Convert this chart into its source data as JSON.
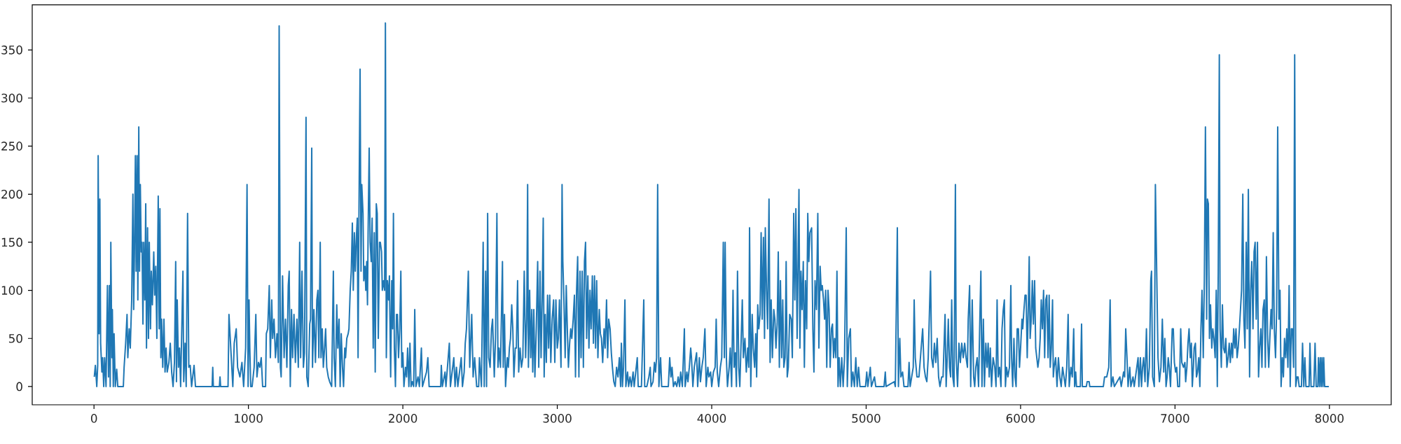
{
  "chart_data": {
    "type": "line",
    "color": "#1f77b4",
    "xlim": [
      -400,
      8400
    ],
    "ylim": [
      -19,
      397
    ],
    "xticks": [
      0,
      1000,
      2000,
      3000,
      4000,
      5000,
      6000,
      7000,
      8000
    ],
    "yticks": [
      0,
      50,
      100,
      150,
      200,
      250,
      300,
      350
    ],
    "x": [
      2,
      9,
      18,
      24,
      27,
      33,
      38,
      43,
      51,
      56,
      63,
      69,
      78,
      87,
      94,
      100,
      105,
      109,
      116,
      119,
      125,
      130,
      138,
      147,
      154,
      190,
      195,
      205,
      214,
      219,
      228,
      235,
      244,
      252,
      257,
      262,
      268,
      273,
      279,
      284,
      290,
      295,
      300,
      306,
      311,
      317,
      322,
      329,
      335,
      340,
      347,
      353,
      358,
      366,
      371,
      378,
      387,
      393,
      400,
      407,
      416,
      422,
      427,
      433,
      438,
      445,
      453,
      460,
      467,
      474,
      485,
      494,
      503,
      512,
      521,
      529,
      534,
      539,
      547,
      554,
      561,
      576,
      581,
      590,
      597,
      606,
      614,
      623,
      632,
      648,
      657,
      765,
      769,
      773,
      812,
      816,
      820,
      868,
      874,
      899,
      908,
      921,
      930,
      945,
      958,
      969,
      982,
      991,
      998,
      1004,
      1009,
      1015,
      1024,
      1037,
      1048,
      1055,
      1065,
      1074,
      1083,
      1092,
      1111,
      1116,
      1125,
      1135,
      1142,
      1151,
      1157,
      1166,
      1175,
      1185,
      1194,
      1199,
      1207,
      1212,
      1221,
      1231,
      1240,
      1249,
      1258,
      1264,
      1271,
      1279,
      1286,
      1295,
      1304,
      1314,
      1323,
      1332,
      1338,
      1347,
      1356,
      1363,
      1373,
      1378,
      1387,
      1397,
      1402,
      1410,
      1415,
      1424,
      1434,
      1443,
      1450,
      1456,
      1465,
      1470,
      1478,
      1485,
      1493,
      1500,
      1507,
      1517,
      1526,
      1539,
      1550,
      1555,
      1563,
      1572,
      1579,
      1587,
      1594,
      1601,
      1609,
      1616,
      1624,
      1629,
      1637,
      1646,
      1651,
      1659,
      1666,
      1673,
      1679,
      1686,
      1692,
      1699,
      1705,
      1710,
      1716,
      1723,
      1729,
      1734,
      1742,
      1747,
      1755,
      1760,
      1766,
      1771,
      1775,
      1782,
      1788,
      1795,
      1801,
      1808,
      1815,
      1821,
      1828,
      1834,
      1841,
      1849,
      1854,
      1862,
      1867,
      1875,
      1882,
      1887,
      1893,
      1900,
      1908,
      1913,
      1921,
      1928,
      1934,
      1939,
      1945,
      1952,
      1959,
      1965,
      1972,
      1980,
      1987,
      1993,
      2000,
      2007,
      2017,
      2024,
      2031,
      2039,
      2046,
      2053,
      2061,
      2070,
      2077,
      2085,
      2098,
      2107,
      2120,
      2127,
      2153,
      2162,
      2170,
      2245,
      2249,
      2256,
      2273,
      2279,
      2301,
      2308,
      2330,
      2338,
      2347,
      2356,
      2378,
      2386,
      2397,
      2404,
      2412,
      2424,
      2433,
      2446,
      2455,
      2465,
      2478,
      2491,
      2496,
      2509,
      2520,
      2527,
      2536,
      2542,
      2549,
      2556,
      2565,
      2574,
      2581,
      2592,
      2600,
      2609,
      2616,
      2623,
      2632,
      2645,
      2650,
      2658,
      2665,
      2676,
      2683,
      2690,
      2697,
      2705,
      2712,
      2719,
      2728,
      2735,
      2743,
      2750,
      2759,
      2768,
      2777,
      2786,
      2795,
      2802,
      2808,
      2813,
      2821,
      2828,
      2835,
      2841,
      2848,
      2855,
      2864,
      2873,
      2880,
      2888,
      2895,
      2902,
      2909,
      2915,
      2922,
      2929,
      2937,
      2944,
      2951,
      2958,
      2967,
      2976,
      2984,
      2991,
      3000,
      3007,
      3014,
      3024,
      3031,
      3036,
      3043,
      3051,
      3058,
      3065,
      3072,
      3080,
      3087,
      3094,
      3103,
      3111,
      3118,
      3125,
      3132,
      3140,
      3147,
      3154,
      3161,
      3169,
      3176,
      3183,
      3190,
      3198,
      3205,
      3212,
      3219,
      3227,
      3234,
      3241,
      3248,
      3255,
      3263,
      3272,
      3279,
      3286,
      3294,
      3303,
      3310,
      3319,
      3326,
      3333,
      3342,
      3350,
      3357,
      3366,
      3375,
      3384,
      3393,
      3402,
      3410,
      3415,
      3422,
      3429,
      3438,
      3444,
      3455,
      3462,
      3471,
      3480,
      3491,
      3498,
      3518,
      3524,
      3545,
      3560,
      3566,
      3580,
      3593,
      3602,
      3607,
      3620,
      3629,
      3636,
      3643,
      3650,
      3658,
      3669,
      3676,
      3719,
      3728,
      3736,
      3743,
      3752,
      3763,
      3774,
      3783,
      3792,
      3799,
      3810,
      3823,
      3828,
      3839,
      3846,
      3855,
      3864,
      3869,
      3878,
      3887,
      3902,
      3909,
      3920,
      3927,
      3936,
      3945,
      3956,
      3964,
      3975,
      3982,
      3993,
      4000,
      4011,
      4022,
      4029,
      4036,
      4045,
      4056,
      4065,
      4075,
      4082,
      4087,
      4095,
      4102,
      4113,
      4120,
      4129,
      4138,
      4145,
      4153,
      4160,
      4167,
      4175,
      4182,
      4191,
      4198,
      4205,
      4215,
      4224,
      4233,
      4240,
      4245,
      4253,
      4262,
      4269,
      4278,
      4285,
      4291,
      4298,
      4305,
      4313,
      4320,
      4327,
      4335,
      4342,
      4347,
      4355,
      4362,
      4371,
      4378,
      4385,
      4393,
      4402,
      4409,
      4416,
      4424,
      4431,
      4438,
      4445,
      4453,
      4460,
      4467,
      4475,
      4482,
      4489,
      4496,
      4505,
      4515,
      4522,
      4531,
      4538,
      4545,
      4553,
      4560,
      4565,
      4571,
      4578,
      4585,
      4593,
      4600,
      4607,
      4615,
      4622,
      4629,
      4636,
      4647,
      4655,
      4662,
      4669,
      4678,
      4687,
      4694,
      4702,
      4709,
      4716,
      4724,
      4731,
      4738,
      4745,
      4753,
      4760,
      4767,
      4775,
      4782,
      4789,
      4796,
      4804,
      4811,
      4818,
      4825,
      4833,
      4842,
      4851,
      4860,
      4871,
      4878,
      4887,
      4898,
      4905,
      4914,
      4924,
      4933,
      4942,
      4951,
      4960,
      4996,
      5004,
      5011,
      5027,
      5034,
      5054,
      5062,
      5116,
      5124,
      5129,
      5182,
      5189,
      5202,
      5209,
      5218,
      5225,
      5236,
      5245,
      5271,
      5278,
      5285,
      5305,
      5311,
      5318,
      5329,
      5342,
      5366,
      5375,
      5384,
      5393,
      5402,
      5417,
      5424,
      5433,
      5442,
      5451,
      5460,
      5469,
      5478,
      5489,
      5498,
      5511,
      5518,
      5525,
      5532,
      5540,
      5547,
      5554,
      5561,
      5569,
      5578,
      5583,
      5592,
      5601,
      5610,
      5619,
      5629,
      5638,
      5647,
      5656,
      5661,
      5670,
      5677,
      5687,
      5696,
      5703,
      5710,
      5719,
      5728,
      5735,
      5743,
      5750,
      5759,
      5766,
      5775,
      5783,
      5790,
      5797,
      5804,
      5812,
      5822,
      5833,
      5841,
      5848,
      5855,
      5864,
      5873,
      5880,
      5888,
      5895,
      5902,
      5909,
      5918,
      5928,
      5937,
      5942,
      5949,
      5957,
      5964,
      5971,
      5978,
      5986,
      5993,
      6000,
      6009,
      6014,
      6022,
      6029,
      6036,
      6043,
      6051,
      6056,
      6062,
      6069,
      6076,
      6083,
      6091,
      6098,
      6105,
      6112,
      6120,
      6127,
      6134,
      6141,
      6149,
      6156,
      6163,
      6170,
      6178,
      6185,
      6192,
      6199,
      6207,
      6212,
      6217,
      6227,
      6236,
      6245,
      6254,
      6263,
      6272,
      6281,
      6290,
      6299,
      6308,
      6315,
      6326,
      6335,
      6344,
      6350,
      6357,
      6362,
      6387,
      6395,
      6400,
      6426,
      6431,
      6444,
      6448,
      6536,
      6544,
      6558,
      6571,
      6580,
      6587,
      6598,
      6607,
      6643,
      6652,
      6667,
      6674,
      6681,
      6689,
      6696,
      6707,
      6714,
      6728,
      6736,
      6761,
      6766,
      6776,
      6783,
      6790,
      6797,
      6806,
      6815,
      6823,
      6834,
      6843,
      6848,
      6855,
      6866,
      6873,
      6890,
      6899,
      6909,
      6918,
      6927,
      6934,
      6942,
      6949,
      6956,
      6963,
      6971,
      6982,
      6989,
      6996,
      7004,
      7011,
      7018,
      7029,
      7037,
      7044,
      7055,
      7064,
      7069,
      7077,
      7084,
      7091,
      7099,
      7106,
      7112,
      7119,
      7124,
      7132,
      7139,
      7146,
      7154,
      7161,
      7168,
      7175,
      7183,
      7190,
      7197,
      7205,
      7210,
      7216,
      7223,
      7230,
      7238,
      7245,
      7252,
      7260,
      7267,
      7274,
      7280,
      7287,
      7292,
      7300,
      7307,
      7314,
      7322,
      7329,
      7336,
      7344,
      7351,
      7358,
      7366,
      7373,
      7380,
      7388,
      7395,
      7402,
      7409,
      7417,
      7424,
      7431,
      7439,
      7446,
      7453,
      7461,
      7468,
      7475,
      7483,
      7490,
      7497,
      7505,
      7512,
      7519,
      7526,
      7534,
      7541,
      7548,
      7556,
      7563,
      7570,
      7578,
      7585,
      7592,
      7600,
      7607,
      7614,
      7622,
      7629,
      7636,
      7643,
      7651,
      7658,
      7665,
      7673,
      7680,
      7687,
      7695,
      7702,
      7709,
      7717,
      7724,
      7731,
      7739,
      7746,
      7753,
      7760,
      7768,
      7775,
      7782,
      7790,
      7797,
      7804,
      7819,
      7826,
      7834,
      7841,
      7848,
      7868,
      7874,
      7881,
      7899,
      7907,
      7914,
      7925,
      7929,
      7936,
      7941,
      7947,
      7952,
      7958,
      7963,
      7969,
      7996
    ],
    "values": [
      10,
      22,
      0,
      22,
      240,
      55,
      195,
      45,
      15,
      30,
      0,
      30,
      0,
      105,
      10,
      105,
      0,
      150,
      30,
      80,
      0,
      55,
      0,
      18,
      0,
      0,
      20,
      45,
      75,
      30,
      60,
      40,
      90,
      200,
      80,
      140,
      240,
      120,
      240,
      90,
      270,
      120,
      210,
      140,
      150,
      65,
      150,
      90,
      190,
      40,
      165,
      50,
      150,
      60,
      120,
      85,
      140,
      95,
      125,
      50,
      198,
      60,
      185,
      30,
      70,
      20,
      70,
      15,
      40,
      15,
      25,
      45,
      15,
      0,
      25,
      130,
      5,
      90,
      20,
      40,
      0,
      120,
      5,
      45,
      0,
      180,
      20,
      22,
      0,
      22,
      0,
      0,
      20,
      0,
      0,
      10,
      0,
      0,
      75,
      0,
      45,
      60,
      20,
      10,
      25,
      0,
      40,
      210,
      0,
      90,
      40,
      0,
      0,
      20,
      75,
      10,
      25,
      20,
      30,
      0,
      0,
      55,
      60,
      105,
      30,
      90,
      50,
      70,
      30,
      55,
      25,
      375,
      20,
      10,
      115,
      30,
      70,
      20,
      105,
      120,
      0,
      80,
      30,
      75,
      25,
      70,
      20,
      150,
      30,
      120,
      20,
      35,
      280,
      10,
      0,
      65,
      70,
      248,
      20,
      80,
      25,
      90,
      100,
      30,
      150,
      30,
      60,
      20,
      40,
      60,
      20,
      10,
      5,
      0,
      120,
      30,
      0,
      85,
      40,
      70,
      0,
      55,
      20,
      0,
      40,
      30,
      50,
      55,
      60,
      100,
      120,
      170,
      100,
      160,
      120,
      155,
      175,
      30,
      185,
      330,
      120,
      210,
      180,
      110,
      125,
      100,
      130,
      85,
      160,
      248,
      150,
      130,
      175,
      40,
      160,
      15,
      190,
      180,
      50,
      150,
      150,
      140,
      100,
      110,
      100,
      378,
      30,
      110,
      90,
      115,
      10,
      110,
      60,
      180,
      40,
      0,
      75,
      75,
      30,
      60,
      120,
      20,
      35,
      0,
      20,
      10,
      40,
      0,
      45,
      0,
      5,
      0,
      80,
      0,
      10,
      0,
      40,
      0,
      15,
      30,
      0,
      0,
      22,
      0,
      15,
      0,
      45,
      0,
      30,
      0,
      20,
      0,
      30,
      0,
      15,
      45,
      60,
      120,
      20,
      75,
      10,
      30,
      0,
      0,
      30,
      0,
      150,
      0,
      120,
      0,
      180,
      30,
      20,
      60,
      70,
      10,
      50,
      180,
      20,
      40,
      20,
      130,
      20,
      75,
      0,
      30,
      20,
      40,
      50,
      85,
      60,
      10,
      40,
      40,
      110,
      15,
      40,
      20,
      30,
      120,
      30,
      70,
      210,
      20,
      100,
      30,
      80,
      15,
      80,
      10,
      60,
      130,
      20,
      120,
      30,
      90,
      175,
      10,
      75,
      25,
      95,
      40,
      95,
      25,
      70,
      90,
      25,
      90,
      40,
      50,
      90,
      20,
      210,
      130,
      90,
      30,
      105,
      60,
      20,
      45,
      60,
      50,
      70,
      95,
      10,
      100,
      135,
      10,
      120,
      30,
      120,
      20,
      130,
      150,
      50,
      115,
      40,
      100,
      60,
      115,
      45,
      115,
      40,
      110,
      30,
      80,
      55,
      50,
      25,
      60,
      40,
      90,
      30,
      70,
      60,
      35,
      20,
      5,
      0,
      20,
      10,
      30,
      0,
      45,
      0,
      20,
      90,
      0,
      15,
      0,
      10,
      0,
      15,
      0,
      30,
      0,
      0,
      90,
      0,
      0,
      10,
      20,
      0,
      5,
      25,
      15,
      30,
      210,
      0,
      30,
      0,
      0,
      30,
      10,
      20,
      0,
      5,
      0,
      10,
      0,
      15,
      0,
      60,
      0,
      15,
      5,
      20,
      40,
      30,
      0,
      20,
      35,
      0,
      30,
      5,
      20,
      30,
      60,
      0,
      20,
      10,
      15,
      0,
      15,
      20,
      70,
      15,
      0,
      20,
      30,
      150,
      30,
      150,
      30,
      0,
      20,
      40,
      0,
      100,
      20,
      35,
      0,
      120,
      20,
      0,
      50,
      90,
      30,
      50,
      15,
      40,
      20,
      165,
      0,
      75,
      40,
      20,
      55,
      10,
      85,
      60,
      75,
      160,
      70,
      155,
      50,
      165,
      100,
      60,
      195,
      25,
      90,
      30,
      80,
      70,
      40,
      65,
      140,
      20,
      110,
      30,
      90,
      20,
      30,
      130,
      10,
      20,
      75,
      70,
      30,
      180,
      90,
      185,
      50,
      140,
      205,
      40,
      120,
      80,
      130,
      20,
      110,
      60,
      180,
      130,
      160,
      165,
      60,
      15,
      110,
      80,
      180,
      40,
      125,
      100,
      105,
      90,
      70,
      100,
      20,
      100,
      80,
      20,
      60,
      65,
      30,
      50,
      30,
      120,
      0,
      30,
      0,
      30,
      0,
      30,
      165,
      0,
      50,
      60,
      0,
      15,
      0,
      30,
      0,
      20,
      0,
      0,
      15,
      0,
      20,
      0,
      10,
      0,
      0,
      15,
      0,
      5,
      0,
      165,
      0,
      50,
      10,
      15,
      0,
      0,
      25,
      0,
      20,
      90,
      30,
      10,
      10,
      60,
      20,
      10,
      5,
      30,
      120,
      30,
      20,
      45,
      25,
      50,
      10,
      0,
      10,
      10,
      75,
      0,
      30,
      70,
      20,
      10,
      90,
      10,
      0,
      210,
      30,
      0,
      45,
      25,
      45,
      30,
      45,
      30,
      20,
      70,
      105,
      0,
      90,
      10,
      0,
      20,
      30,
      0,
      60,
      120,
      0,
      70,
      0,
      45,
      20,
      45,
      10,
      40,
      0,
      30,
      20,
      0,
      90,
      10,
      20,
      0,
      60,
      80,
      90,
      0,
      20,
      10,
      20,
      105,
      30,
      0,
      50,
      10,
      0,
      60,
      60,
      20,
      40,
      70,
      60,
      80,
      95,
      95,
      30,
      90,
      135,
      50,
      70,
      110,
      65,
      110,
      40,
      30,
      20,
      30,
      50,
      90,
      60,
      100,
      30,
      90,
      95,
      30,
      95,
      20,
      40,
      90,
      10,
      20,
      30,
      0,
      30,
      10,
      0,
      20,
      10,
      0,
      20,
      75,
      0,
      20,
      10,
      60,
      0,
      15,
      0,
      0,
      65,
      0,
      0,
      5,
      5,
      0,
      0,
      10,
      10,
      20,
      90,
      0,
      10,
      0,
      10,
      0,
      15,
      10,
      60,
      30,
      0,
      20,
      0,
      10,
      0,
      30,
      0,
      30,
      0,
      20,
      30,
      5,
      60,
      0,
      20,
      110,
      120,
      10,
      0,
      210,
      30,
      5,
      20,
      70,
      15,
      50,
      0,
      10,
      30,
      20,
      0,
      60,
      60,
      25,
      15,
      20,
      0,
      0,
      60,
      25,
      20,
      25,
      5,
      20,
      45,
      60,
      30,
      45,
      0,
      20,
      40,
      45,
      10,
      15,
      30,
      0,
      60,
      100,
      30,
      110,
      270,
      70,
      195,
      190,
      50,
      85,
      40,
      60,
      50,
      30,
      100,
      0,
      120,
      345,
      60,
      20,
      85,
      40,
      35,
      50,
      20,
      30,
      45,
      25,
      45,
      30,
      60,
      40,
      60,
      30,
      40,
      60,
      80,
      100,
      200,
      70,
      40,
      150,
      60,
      205,
      10,
      100,
      130,
      60,
      140,
      150,
      70,
      150,
      10,
      40,
      60,
      20,
      80,
      90,
      20,
      135,
      50,
      20,
      50,
      80,
      60,
      160,
      60,
      30,
      80,
      270,
      70,
      100,
      0,
      30,
      10,
      50,
      30,
      60,
      20,
      105,
      0,
      60,
      60,
      20,
      345,
      0,
      10,
      10,
      0,
      0,
      45,
      0,
      30,
      0,
      0,
      45,
      0,
      0,
      45,
      0,
      0,
      30,
      0,
      30,
      0,
      30,
      0,
      30,
      0,
      0
    ]
  }
}
